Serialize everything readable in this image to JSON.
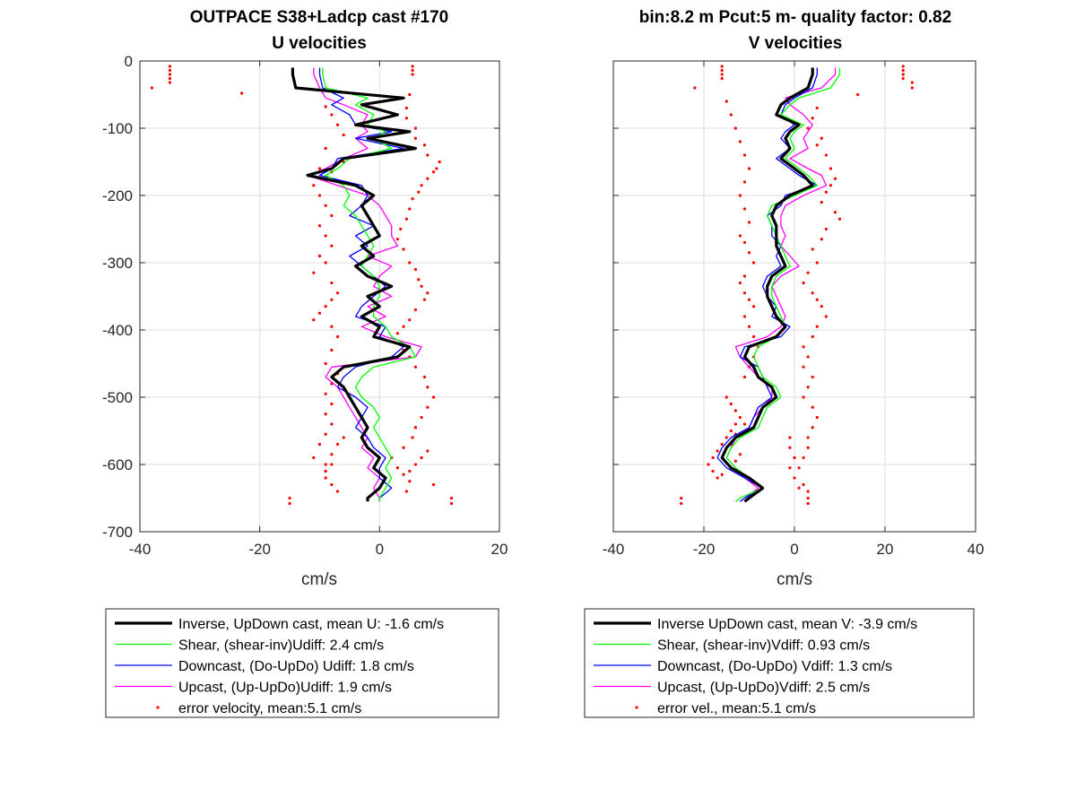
{
  "figure": {
    "left_title_1": "OUTPACE S38+Ladcp cast #170",
    "left_title_2": "U velocities",
    "right_title_1": "bin:8.2 m  Pcut:5 m- quality factor:  0.82",
    "right_title_2": "V velocities"
  },
  "colors": {
    "inverse": "#000000",
    "shear": "#00ff00",
    "downcast": "#0000ff",
    "upcast": "#ff00ff",
    "error": "#ff0000",
    "grid": "#dedede"
  },
  "chart_data": [
    {
      "type": "line",
      "title": "U velocities",
      "xlabel": "cm/s",
      "ylabel": "",
      "xlim": [
        -40,
        20
      ],
      "ylim": [
        -700,
        0
      ],
      "xticks": [
        "-40",
        "-20",
        "0",
        "20"
      ],
      "yticks": [
        "0",
        "-100",
        "-200",
        "-300",
        "-400",
        "-500",
        "-600",
        "-700"
      ],
      "grid": true,
      "legend_position": "below",
      "depth": [
        -10,
        -20,
        -40,
        -55,
        -65,
        -80,
        -95,
        -105,
        -115,
        -130,
        -145,
        -160,
        -170,
        -185,
        -200,
        -215,
        -230,
        -245,
        -260,
        -275,
        -290,
        -305,
        -320,
        -335,
        -350,
        -365,
        -380,
        -395,
        -410,
        -425,
        -440,
        -455,
        -470,
        -485,
        -500,
        -515,
        -530,
        -545,
        -560,
        -575,
        -590,
        -605,
        -620,
        -635,
        -650,
        -655
      ],
      "series": [
        {
          "name": "Inverse, UpDown cast, mean U:  -1.6 cm/s",
          "values": [
            -14.5,
            -14.5,
            -14,
            4,
            -3,
            3,
            -4,
            5,
            -2,
            6,
            -6,
            -8,
            -12,
            -4,
            -1,
            -3,
            -2,
            -1,
            0,
            -3,
            -1,
            -4,
            -2,
            2,
            -2,
            0,
            -3,
            0,
            -1,
            5,
            3,
            -6,
            -8,
            -6,
            -5,
            -4,
            -3,
            -2,
            -3,
            -2,
            0,
            -1,
            1,
            0,
            -2,
            -2
          ]
        },
        {
          "name": "Shear, (shear-inv)Udiff:  2.4 cm/s",
          "values": [
            -9.5,
            -9.5,
            -9,
            -2,
            -4,
            -1,
            -2,
            1,
            -1,
            2,
            -5,
            -7,
            -9,
            -6,
            -5,
            -6,
            -4,
            -3,
            -2,
            -1,
            -2,
            -3,
            -1,
            0,
            0,
            -1,
            -1,
            1,
            2,
            5,
            6,
            -1,
            -3,
            -4,
            -3,
            -1,
            0,
            -1,
            0,
            1,
            2,
            1,
            2,
            1,
            0,
            0
          ]
        },
        {
          "name": "Downcast, (Do-UpDo) Udiff:  1.8 cm/s",
          "values": [
            -10,
            -10,
            -9.5,
            -6,
            -8,
            -5,
            -4,
            2,
            -4,
            4,
            -7,
            -8,
            -10,
            -3,
            -2,
            -3,
            -5,
            -1,
            -4,
            -2,
            -5,
            -3,
            -1,
            1,
            -1,
            -3,
            -4,
            1,
            0,
            4,
            2,
            -4,
            -6,
            -7,
            -4,
            -2,
            -3,
            -4,
            -2,
            -1,
            1,
            0,
            0,
            2,
            0,
            0
          ]
        },
        {
          "name": "Upcast, (Up-UpDo)Udiff:  1.9 cm/s",
          "values": [
            -11,
            -11,
            -10,
            -9,
            -6,
            -2,
            -3,
            -2,
            -4,
            -2,
            -6,
            -9,
            -12,
            -7,
            -2,
            0,
            1,
            2,
            2,
            3,
            -2,
            2,
            0,
            -1,
            2,
            -2,
            1,
            -3,
            1,
            7,
            6,
            -8,
            -9,
            -7,
            -6,
            -5,
            -4,
            -3,
            -2,
            -3,
            -1,
            -2,
            0,
            -1,
            0,
            0
          ]
        },
        {
          "name": "error velocity, mean:5.1 cm/s",
          "type": "scatter",
          "marker": "dot",
          "x": [
            -35,
            -35,
            -35,
            -35,
            -35,
            -38,
            -23,
            -9,
            -8,
            -7,
            -6,
            -9,
            -6,
            -8,
            -10,
            -12,
            -11,
            -10,
            -9,
            -8,
            -10,
            -9,
            -8,
            -10,
            -9,
            -11,
            -8,
            -7,
            -8,
            -9,
            -10,
            -11,
            -8,
            -7,
            -8,
            -9,
            -7,
            -8,
            -9,
            -8,
            -9,
            -8,
            -9,
            -10,
            -11,
            -9,
            -9,
            -9,
            -8,
            -8,
            -8,
            -7,
            -6,
            -7,
            -15,
            -15,
            5.5,
            5.5,
            5.5,
            5,
            4.5,
            4.5,
            6,
            6,
            7.5,
            8,
            10,
            9.5,
            9,
            8,
            7,
            6.5,
            5.5,
            5,
            4.5,
            3.5,
            3,
            4,
            5,
            6,
            6.5,
            7,
            8,
            7.5,
            6,
            5,
            4,
            3,
            3.5,
            4,
            5,
            6,
            7.5,
            8,
            9,
            8,
            7,
            6,
            5.5,
            4,
            2,
            3,
            4,
            5,
            4.5,
            5,
            6,
            7,
            8,
            9,
            12,
            12
          ],
          "y": [
            -8,
            -14,
            -20,
            -26,
            -32,
            -40,
            -48,
            -68,
            -80,
            -95,
            -110,
            -130,
            -150,
            -165,
            -160,
            -170,
            -185,
            -200,
            -215,
            -230,
            -245,
            -260,
            -275,
            -290,
            -300,
            -315,
            -330,
            -345,
            -355,
            -365,
            -375,
            -385,
            -395,
            -410,
            -430,
            -450,
            -465,
            -480,
            -495,
            -510,
            -525,
            -540,
            -555,
            -570,
            -590,
            -600,
            -610,
            -620,
            -630,
            -600,
            -585,
            -570,
            -560,
            -640,
            -650,
            -658,
            -8,
            -14,
            -20,
            -50,
            -70,
            -85,
            -100,
            -115,
            -125,
            -140,
            -150,
            -160,
            -165,
            -175,
            -185,
            -195,
            -205,
            -220,
            -235,
            -250,
            -265,
            -280,
            -300,
            -310,
            -325,
            -335,
            -345,
            -355,
            -370,
            -385,
            -395,
            -405,
            -420,
            -430,
            -440,
            -455,
            -470,
            -485,
            -500,
            -515,
            -530,
            -545,
            -560,
            -575,
            -590,
            -605,
            -615,
            -625,
            -640,
            -610,
            -600,
            -590,
            -580,
            -630,
            -650,
            -658
          ]
        }
      ]
    },
    {
      "type": "line",
      "title": "V velocities",
      "xlabel": "cm/s",
      "ylabel": "",
      "xlim": [
        -40,
        40
      ],
      "ylim": [
        -700,
        0
      ],
      "xticks": [
        "-40",
        "-20",
        "0",
        "20",
        "40"
      ],
      "yticks": [],
      "grid": true,
      "legend_position": "below",
      "depth": [
        -10,
        -20,
        -40,
        -55,
        -65,
        -80,
        -95,
        -105,
        -115,
        -130,
        -145,
        -160,
        -170,
        -185,
        -200,
        -215,
        -230,
        -245,
        -260,
        -275,
        -290,
        -305,
        -320,
        -335,
        -350,
        -365,
        -380,
        -395,
        -410,
        -425,
        -440,
        -455,
        -470,
        -485,
        -500,
        -515,
        -530,
        -545,
        -560,
        -575,
        -590,
        -605,
        -620,
        -635,
        -650,
        -655
      ],
      "series": [
        {
          "name": "Inverse UpDown cast, mean V:  -3.9 cm/s",
          "values": [
            4,
            4,
            3,
            -1,
            -3,
            -4,
            1,
            -1,
            -2,
            -1,
            -3,
            0,
            2,
            4,
            -1,
            -4,
            -5,
            -4,
            -4,
            -4,
            -3,
            -2,
            -5,
            -6,
            -6,
            -5,
            -4,
            -2,
            -4,
            -10,
            -11,
            -9,
            -8,
            -5,
            -4,
            -7,
            -8,
            -9,
            -13,
            -15,
            -16,
            -14,
            -10,
            -7,
            -10,
            -11
          ]
        },
        {
          "name": "Shear, (shear-inv)Vdiff:  0.93 cm/s",
          "values": [
            10,
            10,
            8,
            1,
            -1,
            -3,
            2,
            0,
            -1,
            0,
            -2,
            1,
            3,
            5,
            0,
            -5,
            -6,
            -5,
            -4,
            -3,
            -2,
            -1,
            -4,
            -5,
            -5,
            -4,
            -3,
            -2,
            -4,
            -8,
            -9,
            -8,
            -7,
            -4,
            -3,
            -6,
            -7,
            -8,
            -12,
            -14,
            -15,
            -13,
            -10,
            -7,
            -12,
            -13
          ]
        },
        {
          "name": "Downcast, (Do-UpDo) Vdiff:  1.3 cm/s",
          "values": [
            5,
            5,
            4,
            0,
            -2,
            -3,
            0,
            -2,
            -3,
            -1,
            -4,
            -1,
            1,
            5,
            -2,
            -3,
            -6,
            -5,
            -5,
            -3,
            -4,
            -3,
            -6,
            -7,
            -6,
            -4,
            -5,
            -1,
            -3,
            -11,
            -12,
            -8,
            -7,
            -6,
            -5,
            -8,
            -9,
            -10,
            -14,
            -16,
            -17,
            -15,
            -11,
            -7,
            -11,
            -12
          ]
        },
        {
          "name": "Upcast, (Up-UpDo)Vdiff:  2.5 cm/s",
          "values": [
            9,
            9,
            6,
            -2,
            -1,
            2,
            4,
            3,
            2,
            3,
            -1,
            3,
            6,
            7,
            2,
            -2,
            -3,
            -3,
            -2,
            -3,
            -1,
            1,
            -3,
            -5,
            -4,
            -3,
            -2,
            -3,
            -6,
            -13,
            -12,
            -10,
            -8,
            -5,
            -5,
            -7,
            -9,
            -10,
            -13,
            -14,
            -15,
            -13,
            -11,
            -8,
            -11,
            -12
          ]
        },
        {
          "name": "error vel., mean:5.1 cm/s",
          "type": "scatter",
          "marker": "dot",
          "x": [
            -16,
            -16,
            -16,
            -16,
            -22,
            -15,
            -14,
            -13,
            -12,
            -11,
            -10,
            -11,
            -12,
            -11,
            -10,
            -12,
            -11,
            -10,
            -9,
            -11,
            -12,
            -11,
            -10,
            -9,
            -11,
            -10,
            -9,
            -8,
            -9,
            -10,
            -11,
            -15,
            -14,
            -13,
            -12,
            -11,
            -13,
            -14,
            -12,
            -13,
            -14,
            -16,
            -17,
            -18,
            -19,
            -18,
            -17,
            -16,
            -15,
            -14,
            -13,
            -25,
            -25,
            24,
            24,
            24,
            24,
            26,
            26,
            14,
            5,
            4,
            3,
            6,
            5,
            7,
            8,
            9,
            8,
            7,
            6,
            9,
            10,
            7,
            6,
            4,
            5,
            3,
            2,
            4,
            5,
            6,
            7,
            5,
            4,
            2,
            3,
            2,
            4,
            3,
            2,
            4,
            5,
            4,
            3,
            3,
            2,
            1,
            0,
            1,
            -1,
            0,
            -1,
            -1,
            2,
            3,
            3,
            3
          ],
          "y": [
            -8,
            -14,
            -20,
            -26,
            -40,
            -60,
            -80,
            -100,
            -120,
            -140,
            -160,
            -180,
            -200,
            -220,
            -240,
            -260,
            -270,
            -285,
            -300,
            -320,
            -330,
            -345,
            -355,
            -365,
            -380,
            -395,
            -410,
            -425,
            -440,
            -455,
            -470,
            -500,
            -510,
            -520,
            -530,
            -540,
            -555,
            -570,
            -585,
            -595,
            -605,
            -615,
            -620,
            -590,
            -600,
            -610,
            -580,
            -570,
            -560,
            -550,
            -540,
            -650,
            -658,
            -8,
            -14,
            -20,
            -26,
            -32,
            -40,
            -50,
            -70,
            -85,
            -100,
            -115,
            -125,
            -140,
            -160,
            -175,
            -185,
            -195,
            -210,
            -225,
            -235,
            -250,
            -265,
            -280,
            -300,
            -315,
            -330,
            -345,
            -355,
            -365,
            -380,
            -395,
            -410,
            -425,
            -440,
            -455,
            -470,
            -485,
            -500,
            -515,
            -530,
            -545,
            -560,
            -575,
            -590,
            -605,
            -620,
            -635,
            -605,
            -590,
            -575,
            -560,
            -630,
            -640,
            -650,
            -658
          ]
        }
      ]
    }
  ]
}
